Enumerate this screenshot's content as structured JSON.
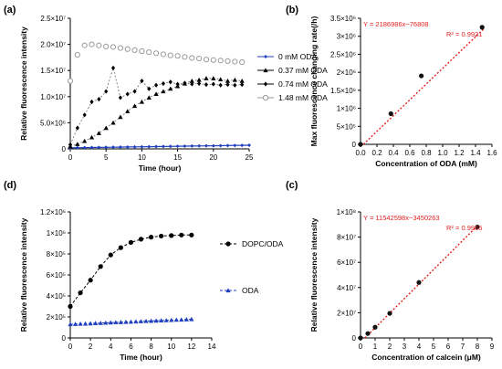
{
  "panel_letters": [
    "(a)",
    "(b)",
    "(c)",
    "(d)"
  ],
  "chart_data": [
    {
      "id": "a",
      "type": "scatter",
      "xlabel": "Time (hour)",
      "ylabel": "Relative fluorescence intensity",
      "xlim": [
        0,
        25
      ],
      "ylim": [
        0,
        25000000
      ],
      "xticks": [
        0,
        5,
        10,
        15,
        20,
        25
      ],
      "yticks": [
        0,
        5000000,
        10000000,
        15000000,
        20000000,
        25000000
      ],
      "yticklabels": [
        "0",
        "5.0×10⁶",
        "1.0×10⁷",
        "1.5×10⁷",
        "2.0×10⁷",
        "2.5×10⁷"
      ],
      "legend_position": "right",
      "series": [
        {
          "name": "0 mM ODA",
          "color": "#1f3fbf",
          "marker": "diamond-line",
          "x": [
            0,
            1,
            2,
            3,
            4,
            5,
            6,
            7,
            8,
            9,
            10,
            11,
            12,
            13,
            14,
            15,
            16,
            17,
            18,
            19,
            20,
            21,
            22,
            23,
            24,
            25
          ],
          "y": [
            200000,
            220000,
            240000,
            260000,
            280000,
            300000,
            320000,
            340000,
            360000,
            380000,
            400000,
            420000,
            440000,
            460000,
            480000,
            500000,
            520000,
            540000,
            560000,
            580000,
            600000,
            620000,
            640000,
            660000,
            680000,
            700000
          ]
        },
        {
          "name": "0.37 mM ODA",
          "color": "#000000",
          "marker": "triangle",
          "x": [
            0,
            1,
            2,
            3,
            4,
            5,
            6,
            7,
            8,
            9,
            10,
            11,
            12,
            13,
            14,
            15,
            16,
            17,
            18,
            19,
            20,
            21,
            22,
            23,
            24
          ],
          "y": [
            500000,
            900000,
            1500000,
            2200000,
            3000000,
            4000000,
            5000000,
            6100000,
            7200000,
            8200000,
            9000000,
            9800000,
            10500000,
            11000000,
            11500000,
            12000000,
            12500000,
            13000000,
            13200000,
            13500000,
            13500000,
            13300000,
            13000000,
            13200000,
            13000000
          ]
        },
        {
          "name": "0.74 mM ODA",
          "color": "#000000",
          "marker": "filled-diamond",
          "x": [
            0,
            1,
            2,
            3,
            4,
            5,
            6,
            7,
            8,
            9,
            10,
            11,
            12,
            13,
            14,
            15,
            16,
            17,
            18,
            19,
            20,
            21,
            22,
            23,
            24
          ],
          "y": [
            800000,
            4000000,
            6500000,
            9000000,
            9500000,
            11000000,
            15500000,
            9800000,
            10500000,
            11000000,
            13000000,
            11500000,
            12200000,
            12500000,
            12800000,
            12400000,
            12600000,
            12400000,
            12500000,
            12300000,
            12400000,
            12200000,
            12300000,
            12200000,
            12300000
          ]
        },
        {
          "name": "1.48 mM ODA",
          "color": "#9a9a9a",
          "marker": "open-circle",
          "x": [
            0,
            1,
            2,
            3,
            4,
            5,
            6,
            7,
            8,
            9,
            10,
            11,
            12,
            13,
            14,
            15,
            16,
            17,
            18,
            19,
            20,
            21,
            22,
            23,
            24
          ],
          "y": [
            13000000,
            18000000,
            19800000,
            20000000,
            19800000,
            19600000,
            19500000,
            19300000,
            19100000,
            18900000,
            18700000,
            18500000,
            18300000,
            18100000,
            17900000,
            17800000,
            17600000,
            17400000,
            17300000,
            17100000,
            17000000,
            16900000,
            16800000,
            16700000,
            16600000
          ]
        }
      ]
    },
    {
      "id": "b",
      "type": "scatter",
      "xlabel": "Concentration of ODA (mM)",
      "ylabel": "Max fluorescence changing rate(/h)",
      "xlim": [
        0,
        1.6
      ],
      "ylim": [
        0,
        3500000
      ],
      "xticks": [
        0.0,
        0.2,
        0.4,
        0.6,
        0.8,
        1.0,
        1.2,
        1.4,
        1.6
      ],
      "xticklabels": [
        "0.0",
        "0.2",
        "0.4",
        "0.6",
        "0.8",
        "1.0",
        "1.2",
        "1.4",
        "1.6"
      ],
      "yticks": [
        0,
        500000,
        1000000,
        1500000,
        2000000,
        2500000,
        3000000,
        3500000
      ],
      "yticklabels": [
        "0",
        "5×10⁵",
        "1×10⁶",
        "1.5×10⁶",
        "2×10⁶",
        "2.5×10⁶",
        "3×10⁶",
        "3.5×10⁶"
      ],
      "points": {
        "x": [
          0,
          0.37,
          0.74,
          1.48
        ],
        "y": [
          0,
          850000,
          1900000,
          3250000
        ]
      },
      "fit": {
        "slope": 2186986,
        "intercept": -76808,
        "equation": "Y = 2186986x−76808",
        "r2": "R² = 0.9921"
      }
    },
    {
      "id": "c",
      "type": "scatter",
      "xlabel": "Concentration of calcein (μM)",
      "ylabel": "Relative fluorescence intensity",
      "xlim": [
        0,
        9
      ],
      "ylim": [
        0,
        100000000
      ],
      "xticks": [
        0,
        1,
        2,
        3,
        4,
        5,
        6,
        7,
        8,
        9
      ],
      "yticks": [
        0,
        20000000,
        40000000,
        60000000,
        80000000,
        100000000
      ],
      "yticklabels": [
        "0",
        "2×10⁷",
        "4×10⁷",
        "6×10⁷",
        "8×10⁷",
        "1×10⁸"
      ],
      "points": {
        "x": [
          0,
          0.5,
          1,
          2,
          4,
          8
        ],
        "y": [
          0,
          3500000,
          8500000,
          19500000,
          44000000,
          88000000
        ]
      },
      "fit": {
        "slope": 11542598,
        "intercept": -3450263,
        "equation": "Y = 11542598x−3450263",
        "r2": "R² = 0.9965"
      }
    },
    {
      "id": "d",
      "type": "line",
      "xlabel": "Time (hour)",
      "ylabel": "Relative fluorescence intensity",
      "xlim": [
        0,
        14
      ],
      "ylim": [
        0,
        1200000
      ],
      "xticks": [
        0,
        2,
        4,
        6,
        8,
        10,
        12,
        14
      ],
      "yticks": [
        0,
        200000,
        400000,
        600000,
        800000,
        1000000,
        1200000
      ],
      "yticklabels": [
        "0",
        "2×10⁵",
        "4×10⁵",
        "6×10⁵",
        "8×10⁵",
        "1×10⁶",
        "1.2×10⁶"
      ],
      "legend_position": "right",
      "series": [
        {
          "name": "DOPC/ODA",
          "color": "#000000",
          "marker": "filled-circle",
          "x": [
            0,
            1,
            2,
            3,
            4,
            5,
            6,
            7,
            8,
            9,
            10,
            11,
            12
          ],
          "y": [
            300000,
            430000,
            550000,
            680000,
            790000,
            860000,
            910000,
            940000,
            960000,
            970000,
            975000,
            980000,
            980000
          ]
        },
        {
          "name": "ODA",
          "color": "#1f3fbf",
          "marker": "triangle",
          "x": [
            0,
            0.5,
            1,
            1.5,
            2,
            2.5,
            3,
            3.5,
            4,
            4.5,
            5,
            5.5,
            6,
            6.5,
            7,
            7.5,
            8,
            8.5,
            9,
            9.5,
            10,
            10.5,
            11,
            11.5,
            12
          ],
          "y": [
            130000,
            132000,
            134000,
            136000,
            138000,
            140000,
            142000,
            144000,
            146000,
            148000,
            150000,
            152000,
            154000,
            156000,
            158000,
            160000,
            162000,
            164000,
            166000,
            168000,
            170000,
            172000,
            174000,
            176000,
            178000
          ]
        }
      ]
    }
  ]
}
